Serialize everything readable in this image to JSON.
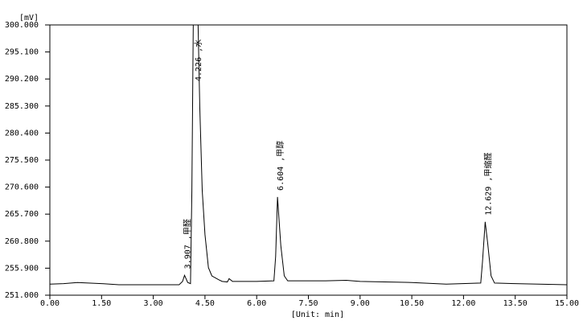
{
  "chart_data": {
    "type": "line",
    "y_unit": "[mV]",
    "x_label": "[Unit: min]",
    "xlim": [
      0,
      15
    ],
    "ylim": [
      251,
      300
    ],
    "xticks": [
      {
        "value": 0,
        "label": "0.00"
      },
      {
        "value": 1.5,
        "label": "1.50"
      },
      {
        "value": 3,
        "label": "3.00"
      },
      {
        "value": 4.5,
        "label": "4.50"
      },
      {
        "value": 6,
        "label": "6.00"
      },
      {
        "value": 7.5,
        "label": "7.50"
      },
      {
        "value": 9,
        "label": "9.00"
      },
      {
        "value": 10.5,
        "label": "10.50"
      },
      {
        "value": 12,
        "label": "12.00"
      },
      {
        "value": 13.5,
        "label": "13.50"
      },
      {
        "value": 15,
        "label": "15.00"
      }
    ],
    "yticks": [
      {
        "value": 251,
        "label": "251.000"
      },
      {
        "value": 255.9,
        "label": "255.900"
      },
      {
        "value": 260.8,
        "label": "260.800"
      },
      {
        "value": 265.7,
        "label": "265.700"
      },
      {
        "value": 270.6,
        "label": "270.600"
      },
      {
        "value": 275.5,
        "label": "275.500"
      },
      {
        "value": 280.4,
        "label": "280.400"
      },
      {
        "value": 285.3,
        "label": "285.300"
      },
      {
        "value": 290.2,
        "label": "290.200"
      },
      {
        "value": 295.1,
        "label": "295.100"
      },
      {
        "value": 300,
        "label": "300.000"
      }
    ],
    "x": [
      0,
      0.4,
      0.8,
      1.5,
      2.0,
      3.0,
      3.75,
      3.85,
      3.907,
      4.0,
      4.08,
      4.12,
      4.16,
      4.226,
      4.3,
      4.35,
      4.42,
      4.5,
      4.6,
      4.7,
      4.9,
      5.0,
      5.15,
      5.2,
      5.3,
      5.6,
      6.0,
      6.5,
      6.55,
      6.604,
      6.7,
      6.8,
      6.9,
      8.0,
      8.6,
      9.0,
      10.5,
      11.5,
      12.5,
      12.55,
      12.629,
      12.7,
      12.8,
      12.9,
      13.5,
      15.0
    ],
    "series": [
      {
        "color": "#000000",
        "values": [
          253.0,
          253.1,
          253.3,
          253.1,
          252.9,
          252.9,
          252.9,
          253.5,
          254.6,
          253.3,
          253.1,
          270,
          300,
          300,
          300,
          285,
          270,
          262,
          256,
          254.5,
          253.8,
          253.5,
          253.4,
          254.0,
          253.5,
          253.5,
          253.5,
          253.6,
          258,
          268.8,
          260,
          254.5,
          253.6,
          253.6,
          253.7,
          253.5,
          253.3,
          253.0,
          253.2,
          257,
          264.3,
          260.5,
          254.5,
          253.2,
          253.1,
          252.9
        ]
      }
    ],
    "annotations": [
      {
        "x": 3.907,
        "text": "3.907 ,甲醛"
      },
      {
        "x": 4.226,
        "text": "4.226 ,水"
      },
      {
        "x": 6.604,
        "text": "6.604 ,甲醇"
      },
      {
        "x": 12.629,
        "text": "12.629 ,甲缩醛"
      }
    ]
  }
}
